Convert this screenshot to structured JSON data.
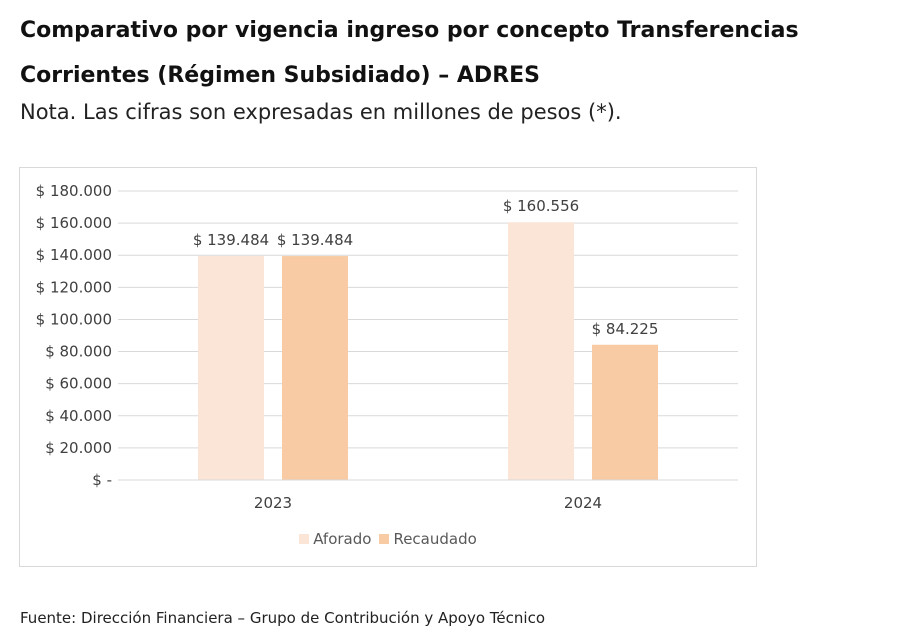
{
  "header": {
    "title": "Comparativo por vigencia ingreso por concepto Transferencias Corrientes (Régimen Subsidiado) – ADRES",
    "note": "Nota. Las cifras son expresadas en millones de pesos (*)."
  },
  "footer": {
    "source": "Fuente: Dirección Financiera – Grupo de Contribución y Apoyo Técnico"
  },
  "chart_data": {
    "type": "bar",
    "categories": [
      "2023",
      "2024"
    ],
    "series": [
      {
        "name": "Aforado",
        "values": [
          139484,
          160556
        ],
        "value_labels": [
          "$ 139.484",
          "$ 160.556"
        ],
        "color": "#fbe5d6"
      },
      {
        "name": "Recaudado",
        "values": [
          139484,
          84225
        ],
        "value_labels": [
          "$ 139.484",
          "$ 84.225"
        ],
        "color": "#f8cba4"
      }
    ],
    "ylim": [
      0,
      180000
    ],
    "yticks": [
      0,
      20000,
      40000,
      60000,
      80000,
      100000,
      120000,
      140000,
      160000,
      180000
    ],
    "ytick_labels": [
      "$ -",
      "$ 20.000",
      "$ 40.000",
      "$ 60.000",
      "$ 80.000",
      "$ 100.000",
      "$ 120.000",
      "$ 140.000",
      "$ 160.000",
      "$ 180.000"
    ],
    "grid": true,
    "gridline_color": "#d9d9d9",
    "legend_position": "bottom"
  }
}
